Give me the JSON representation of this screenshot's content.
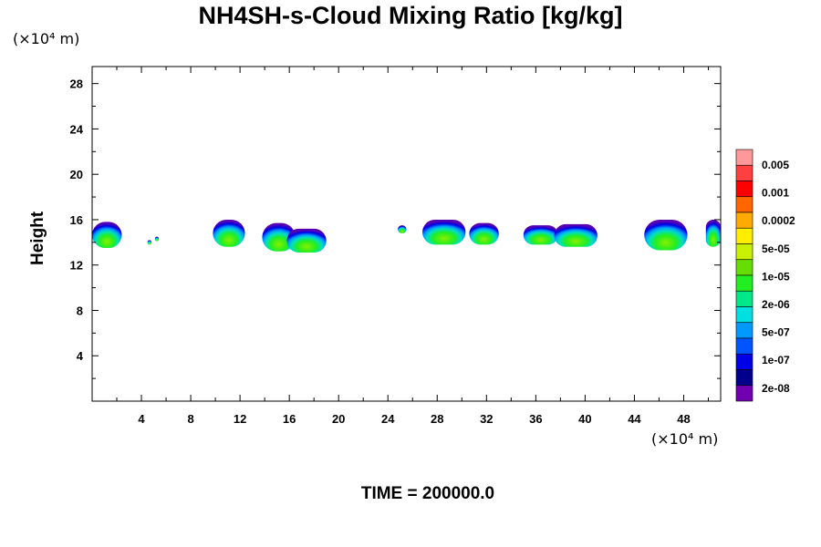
{
  "title": "NH4SH-s-Cloud Mixing Ratio [kg/kg]",
  "y_unit": "(×10⁴ m)",
  "x_unit": "(×10⁴ m)",
  "y_label": "Height",
  "time_label": "TIME = 200000.0",
  "chart_data": {
    "type": "heatmap",
    "xlim": [
      0,
      51
    ],
    "ylim": [
      0,
      29.5
    ],
    "x_ticks": [
      4,
      8,
      12,
      16,
      20,
      24,
      28,
      32,
      36,
      40,
      44,
      48
    ],
    "x_tick_labels": [
      "4",
      "8",
      "12",
      "16",
      "20",
      "24",
      "28",
      "32",
      "36",
      "40",
      "44",
      "48"
    ],
    "y_ticks": [
      4,
      8,
      12,
      16,
      20,
      24,
      28
    ],
    "y_tick_labels": [
      "4",
      "8",
      "12",
      "16",
      "20",
      "24",
      "28"
    ],
    "colorbar": {
      "labels": [
        "0.005",
        "0.001",
        "0.0002",
        "5e-05",
        "1e-05",
        "2e-06",
        "5e-07",
        "1e-07",
        "2e-08"
      ],
      "colors_top_to_bottom": [
        "#ff9999",
        "#ff4040",
        "#ff0000",
        "#ff6600",
        "#ffaa00",
        "#ffee00",
        "#c8f000",
        "#66dd00",
        "#22ee22",
        "#00e88a",
        "#00e0e0",
        "#0099ff",
        "#0055ff",
        "#0000e6",
        "#00008c",
        "#7000b0"
      ]
    },
    "clouds": [
      {
        "x": [
          0,
          2.4
        ],
        "y": [
          13.5,
          15.8
        ]
      },
      {
        "x": [
          4.5,
          4.8
        ],
        "y": [
          13.8,
          14.2
        ]
      },
      {
        "x": [
          5.1,
          5.4
        ],
        "y": [
          14.1,
          14.5
        ]
      },
      {
        "x": [
          9.8,
          12.4
        ],
        "y": [
          13.6,
          16.0
        ]
      },
      {
        "x": [
          13.8,
          16.5
        ],
        "y": [
          13.2,
          15.7
        ]
      },
      {
        "x": [
          15.8,
          19.0
        ],
        "y": [
          13.1,
          15.2
        ]
      },
      {
        "x": [
          24.8,
          25.5
        ],
        "y": [
          14.8,
          15.5
        ]
      },
      {
        "x": [
          26.8,
          30.3
        ],
        "y": [
          13.8,
          16.0
        ]
      },
      {
        "x": [
          30.6,
          33.0
        ],
        "y": [
          13.8,
          15.7
        ]
      },
      {
        "x": [
          35.0,
          37.8
        ],
        "y": [
          13.8,
          15.5
        ]
      },
      {
        "x": [
          37.5,
          41.0
        ],
        "y": [
          13.6,
          15.6
        ]
      },
      {
        "x": [
          44.8,
          48.3
        ],
        "y": [
          13.3,
          16.0
        ]
      },
      {
        "x": [
          49.8,
          51.0
        ],
        "y": [
          13.6,
          16.0
        ]
      }
    ]
  }
}
